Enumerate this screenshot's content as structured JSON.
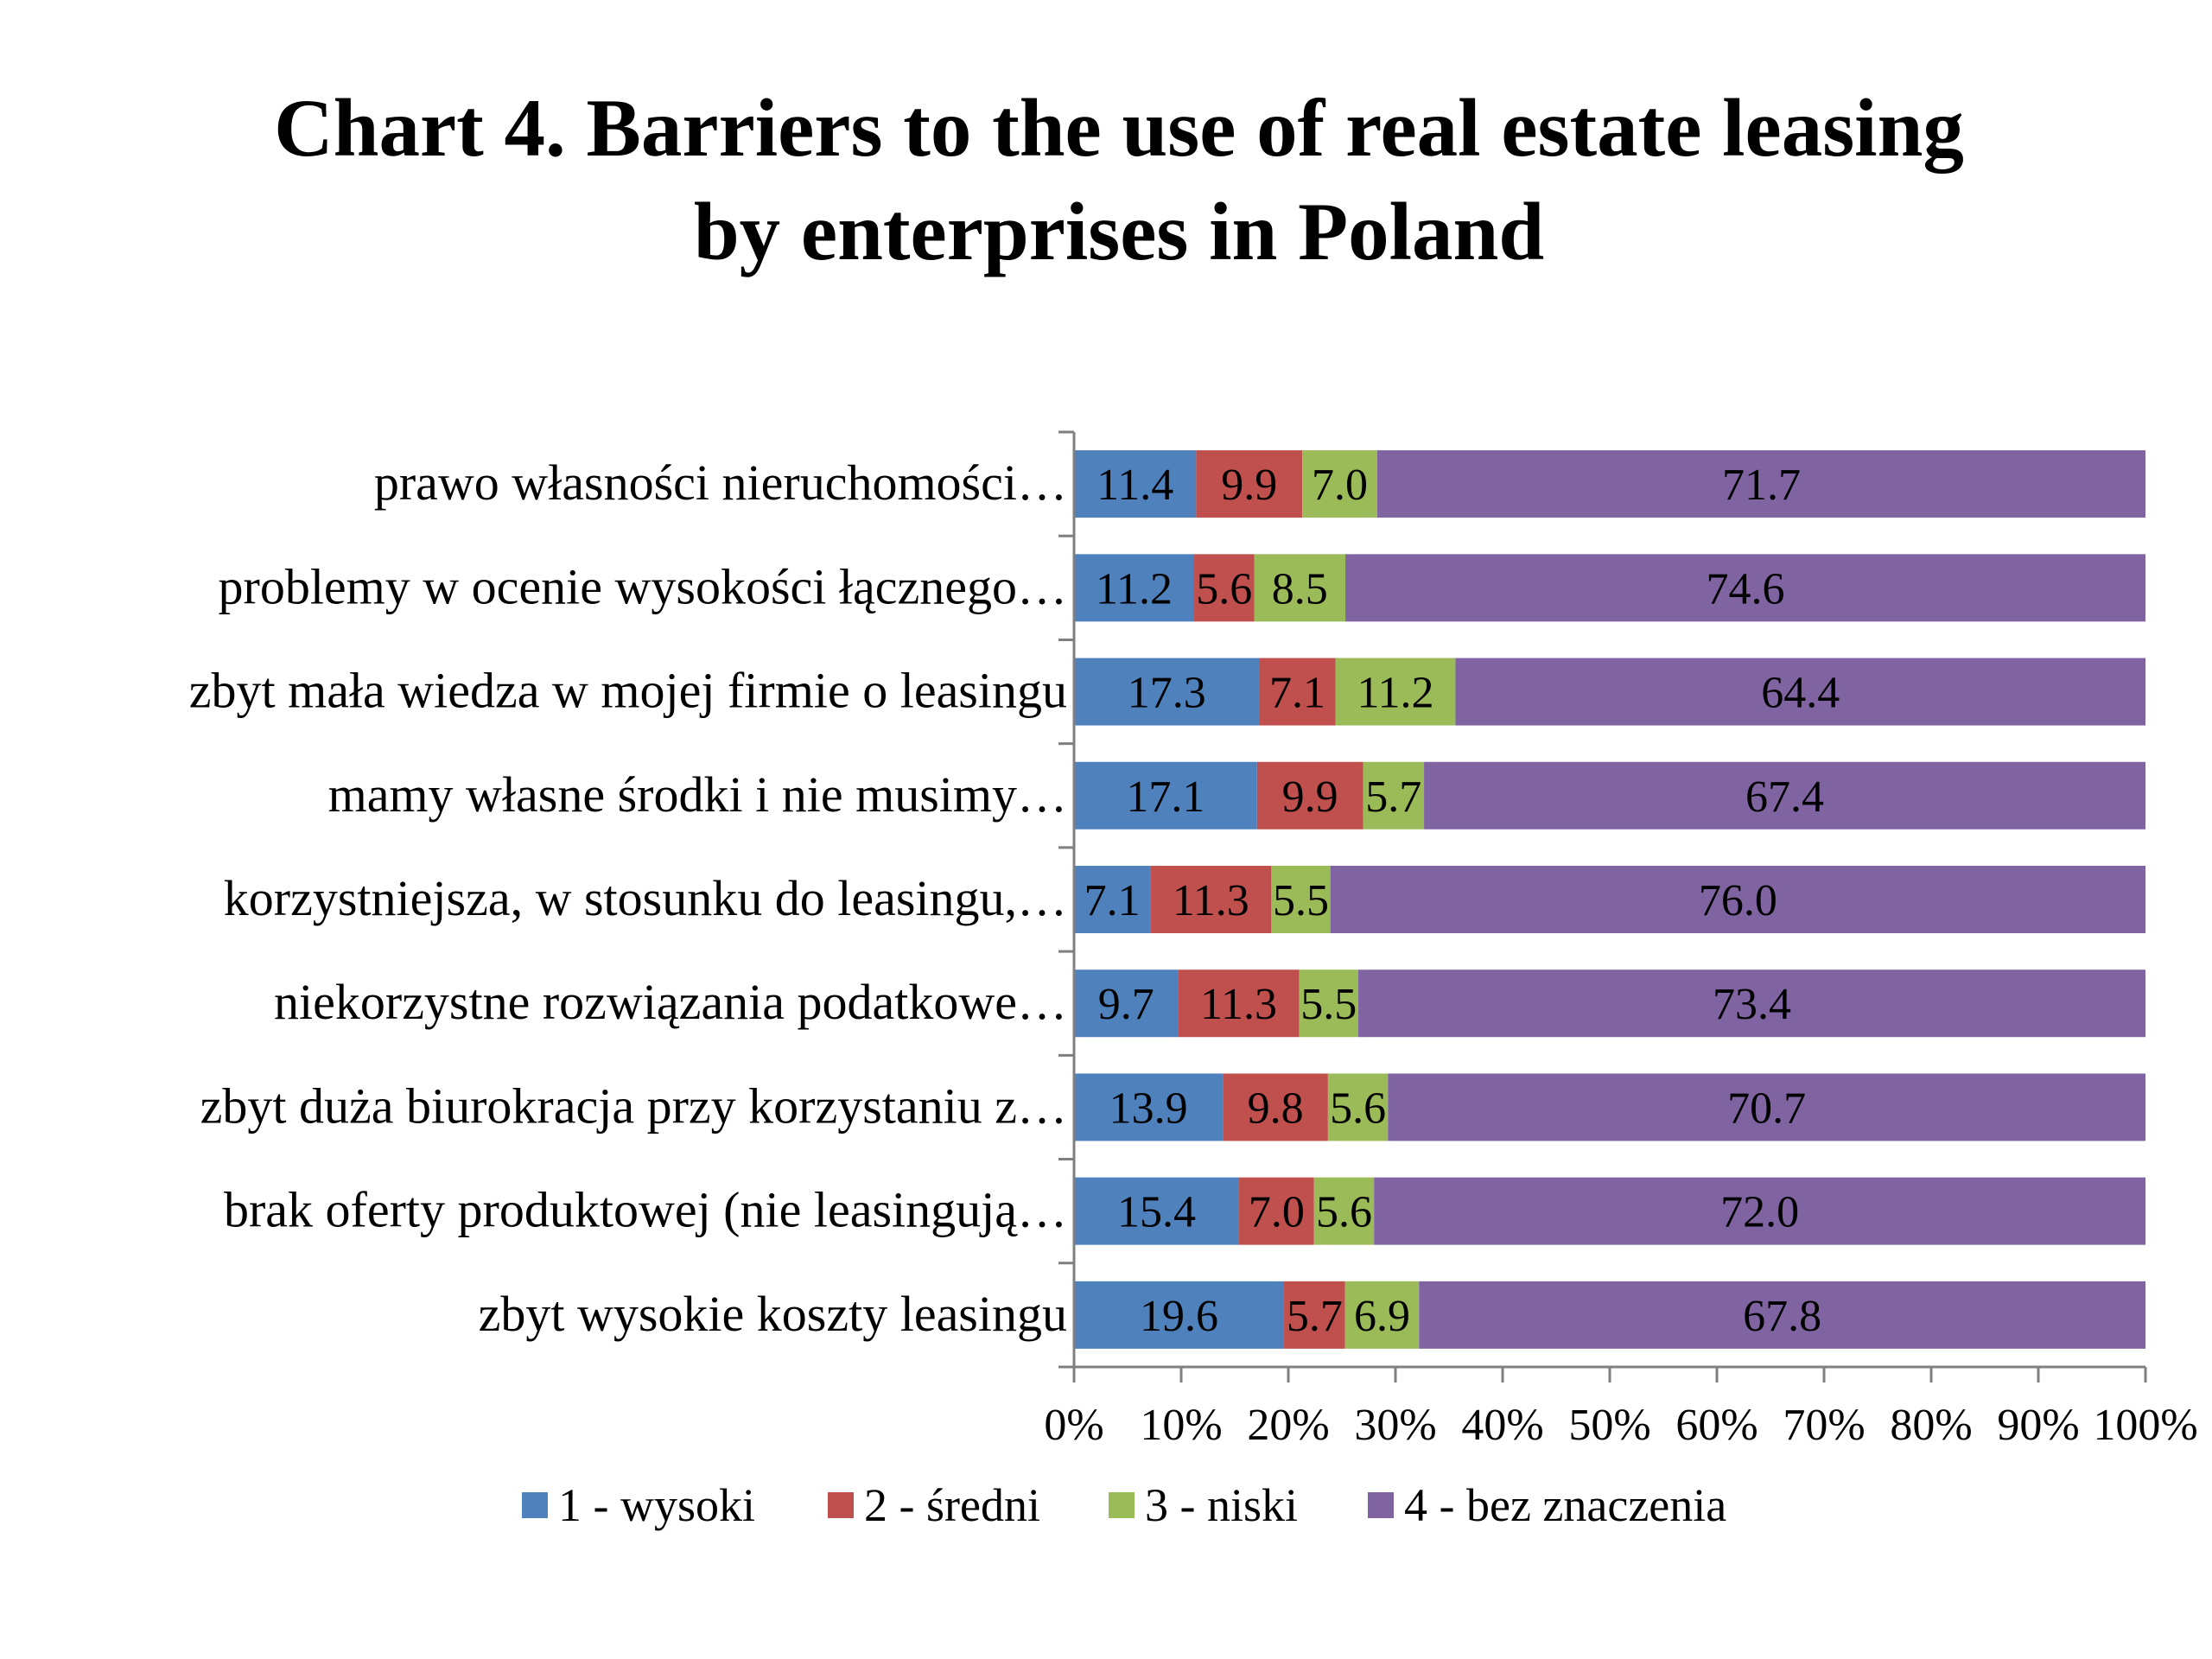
{
  "chart_data": {
    "type": "bar",
    "orientation": "horizontal",
    "stacked": "percent",
    "title_lines": [
      "Chart 4. Barriers to the use of real estate leasing",
      "by enterprises in Poland"
    ],
    "xlabel": "",
    "ylabel": "",
    "xlim": [
      0,
      100
    ],
    "x_ticks": [
      "0%",
      "10%",
      "20%",
      "30%",
      "40%",
      "50%",
      "60%",
      "70%",
      "80%",
      "90%",
      "100%"
    ],
    "grid": false,
    "legend_position": "bottom",
    "categories": [
      "prawo własności nieruchomości…",
      "problemy w ocenie wysokości łącznego…",
      "zbyt mała wiedza w mojej firmie o leasingu",
      "mamy własne środki i nie musimy…",
      "korzystniejsza, w stosunku do leasingu,…",
      "niekorzystne rozwiązania podatkowe…",
      "zbyt duża biurokracja przy korzystaniu z…",
      "brak oferty produktowej (nie leasingują…",
      "zbyt wysokie koszty leasingu"
    ],
    "series": [
      {
        "name": "1 - wysoki",
        "color": "#4f81bd",
        "values": [
          11.4,
          11.2,
          17.3,
          17.1,
          7.1,
          9.7,
          13.9,
          15.4,
          19.6
        ],
        "labels": [
          "11.4",
          "11.2",
          "17.3",
          "17.1",
          "7.1",
          "9.7",
          "13.9",
          "15.4",
          "19.6"
        ]
      },
      {
        "name": "2 - średni",
        "color": "#c0504d",
        "values": [
          9.9,
          5.6,
          7.1,
          9.9,
          11.3,
          11.3,
          9.8,
          7.0,
          5.7
        ],
        "labels": [
          "9.9",
          "5.6",
          "7.1",
          "9.9",
          "11.3",
          "11.3",
          "9.8",
          "7.0",
          "5.7"
        ]
      },
      {
        "name": "3 - niski",
        "color": "#9bbb59",
        "values": [
          7.0,
          8.5,
          11.2,
          5.7,
          5.5,
          5.5,
          5.6,
          5.6,
          6.9
        ],
        "labels": [
          "7.0",
          "8.5",
          "11.2",
          "5.7",
          "5.5",
          "5.5",
          "5.6",
          "5.6",
          "6.9"
        ]
      },
      {
        "name": "4 - bez znaczenia",
        "color": "#8064a2",
        "values": [
          71.7,
          74.6,
          64.4,
          67.4,
          76.0,
          73.4,
          70.7,
          72.0,
          67.8
        ],
        "labels": [
          "71.7",
          "74.6",
          "64.4",
          "67.4",
          "76.0",
          "73.4",
          "70.7",
          "72.0",
          "67.8"
        ]
      }
    ]
  }
}
